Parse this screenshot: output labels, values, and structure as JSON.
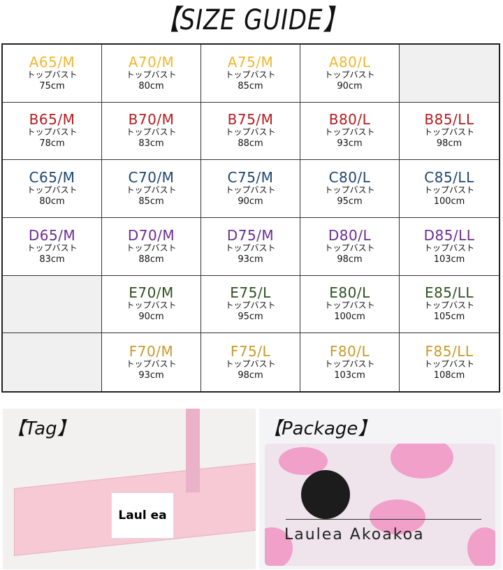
{
  "title": "【SIZE GUIDE】",
  "bust_label": "トップバスト",
  "colors": {
    "A": "#f0b730",
    "B": "#b51a1e",
    "C": "#1d4670",
    "D": "#6b2c93",
    "E": "#2f4f1f",
    "F": "#c89a2a"
  },
  "rows": [
    {
      "cup": "A",
      "cells": [
        {
          "size": "A65/M",
          "bust": "75cm"
        },
        {
          "size": "A70/M",
          "bust": "80cm"
        },
        {
          "size": "A75/M",
          "bust": "85cm"
        },
        {
          "size": "A80/L",
          "bust": "90cm"
        },
        null
      ]
    },
    {
      "cup": "B",
      "cells": [
        {
          "size": "B65/M",
          "bust": "78cm"
        },
        {
          "size": "B70/M",
          "bust": "83cm"
        },
        {
          "size": "B75/M",
          "bust": "88cm"
        },
        {
          "size": "B80/L",
          "bust": "93cm"
        },
        {
          "size": "B85/LL",
          "bust": "98cm"
        }
      ]
    },
    {
      "cup": "C",
      "cells": [
        {
          "size": "C65/M",
          "bust": "80cm"
        },
        {
          "size": "C70/M",
          "bust": "85cm"
        },
        {
          "size": "C75/M",
          "bust": "90cm"
        },
        {
          "size": "C80/L",
          "bust": "95cm"
        },
        {
          "size": "C85/LL",
          "bust": "100cm"
        }
      ]
    },
    {
      "cup": "D",
      "cells": [
        {
          "size": "D65/M",
          "bust": "83cm"
        },
        {
          "size": "D70/M",
          "bust": "88cm"
        },
        {
          "size": "D75/M",
          "bust": "93cm"
        },
        {
          "size": "D80/L",
          "bust": "98cm"
        },
        {
          "size": "D85/LL",
          "bust": "103cm"
        }
      ]
    },
    {
      "cup": "E",
      "cells": [
        null,
        {
          "size": "E70/M",
          "bust": "90cm"
        },
        {
          "size": "E75/L",
          "bust": "95cm"
        },
        {
          "size": "E80/L",
          "bust": "100cm"
        },
        {
          "size": "E85/LL",
          "bust": "105cm"
        }
      ]
    },
    {
      "cup": "F",
      "cells": [
        null,
        {
          "size": "F70/M",
          "bust": "93cm"
        },
        {
          "size": "F75/L",
          "bust": "98cm"
        },
        {
          "size": "F80/L",
          "bust": "103cm"
        },
        {
          "size": "F85/LL",
          "bust": "108cm"
        }
      ]
    }
  ],
  "tag_photo": {
    "title": "【Tag】",
    "label_text": "Laul ea"
  },
  "package_photo": {
    "title": "【Package】",
    "brand_text": "Laulea Akoakoa"
  }
}
